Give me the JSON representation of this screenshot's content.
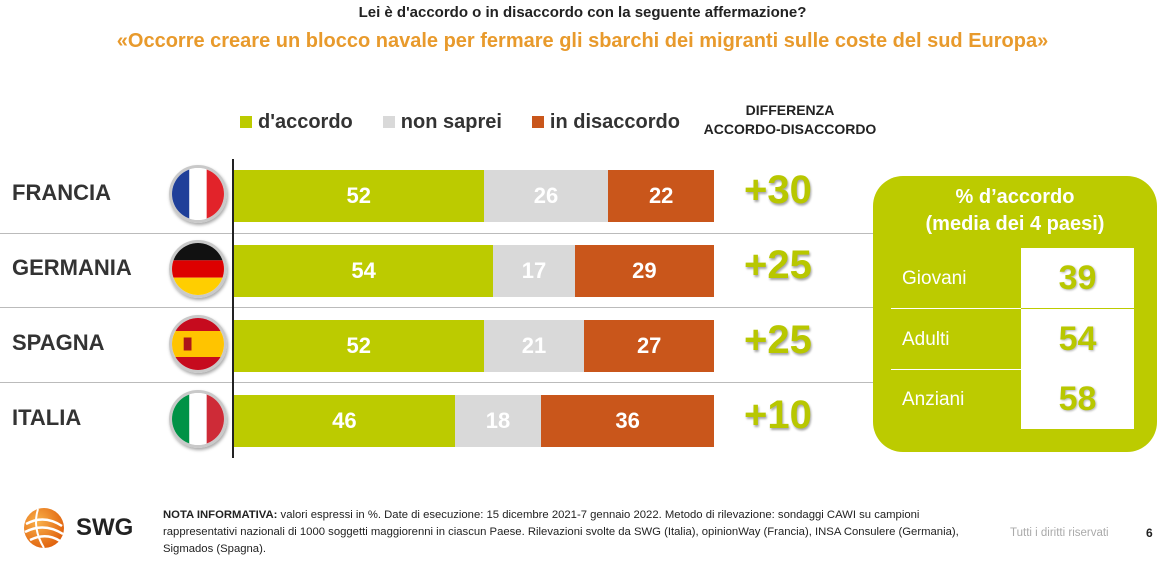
{
  "header": {
    "question": "Lei è d'accordo o in disaccordo con la seguente affermazione?",
    "statement": "«Occorre creare un blocco navale per fermare gli sbarchi dei migranti sulle coste del sud Europa»"
  },
  "legend": {
    "items": [
      {
        "label": "d'accordo",
        "color": "#bccb00"
      },
      {
        "label": "non saprei",
        "color": "#d9d9d9"
      },
      {
        "label": "in disaccordo",
        "color": "#c9561b"
      }
    ]
  },
  "diff_header": {
    "line1": "DIFFERENZA",
    "line2": "ACCORDO-DISACCORDO"
  },
  "chart_data": {
    "type": "bar",
    "stacked": true,
    "orientation": "horizontal",
    "categories": [
      "FRANCIA",
      "GERMANIA",
      "SPAGNA",
      "ITALIA"
    ],
    "series": [
      {
        "name": "d'accordo",
        "values": [
          52,
          54,
          52,
          46
        ],
        "color": "#bccb00"
      },
      {
        "name": "non saprei",
        "values": [
          26,
          17,
          21,
          18
        ],
        "color": "#d9d9d9"
      },
      {
        "name": "in disaccordo",
        "values": [
          22,
          29,
          27,
          36
        ],
        "color": "#c9561b"
      }
    ],
    "differences": [
      "+30",
      "+25",
      "+25",
      "+10"
    ],
    "flags": [
      "france-flag-icon",
      "germany-flag-icon",
      "spain-flag-icon",
      "italy-flag-icon"
    ],
    "xlim": [
      0,
      100
    ],
    "legend_position": "top"
  },
  "panel": {
    "title_line1": "% d’accordo",
    "title_line2": "(media dei 4 paesi)",
    "rows": [
      {
        "label": "Giovani",
        "value": "39"
      },
      {
        "label": "Adulti",
        "value": "54"
      },
      {
        "label": "Anziani",
        "value": "58"
      }
    ]
  },
  "footer": {
    "logo_text": "SWG",
    "note_label": "NOTA INFORMATIVA:",
    "note_text": " valori espressi in %. Date di esecuzione: 15 dicembre 2021-7 gennaio 2022. Metodo di rilevazione: sondaggi CAWI su campioni rappresentativi nazionali di 1000 soggetti maggiorenni in ciascun Paese. Rilevazioni svolte da SWG (Italia), opinionWay (Francia), INSA Consulere (Germania), Sigmados (Spagna).",
    "rights": "Tutti i diritti riservati",
    "page": "6"
  }
}
